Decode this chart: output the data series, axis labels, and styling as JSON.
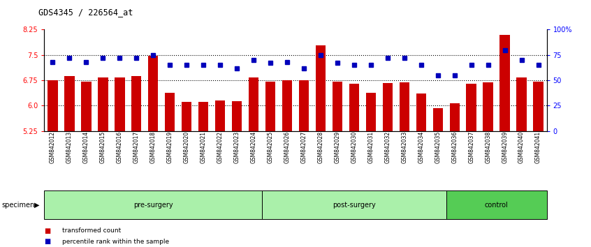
{
  "title": "GDS4345 / 226564_at",
  "samples": [
    "GSM842012",
    "GSM842013",
    "GSM842014",
    "GSM842015",
    "GSM842016",
    "GSM842017",
    "GSM842018",
    "GSM842019",
    "GSM842020",
    "GSM842021",
    "GSM842022",
    "GSM842023",
    "GSM842024",
    "GSM842025",
    "GSM842026",
    "GSM842027",
    "GSM842028",
    "GSM842029",
    "GSM842030",
    "GSM842031",
    "GSM842032",
    "GSM842033",
    "GSM842034",
    "GSM842035",
    "GSM842036",
    "GSM842037",
    "GSM842038",
    "GSM842039",
    "GSM842040",
    "GSM842041"
  ],
  "red_values": [
    6.75,
    6.87,
    6.72,
    6.83,
    6.83,
    6.88,
    7.48,
    6.37,
    6.12,
    6.12,
    6.15,
    6.13,
    6.83,
    6.72,
    6.75,
    6.75,
    7.78,
    6.7,
    6.65,
    6.37,
    6.67,
    6.68,
    6.35,
    5.93,
    6.07,
    6.65,
    6.68,
    8.1,
    6.83,
    6.7
  ],
  "blue_values": [
    68,
    72,
    68,
    72,
    72,
    72,
    75,
    65,
    65,
    65,
    65,
    62,
    70,
    67,
    68,
    62,
    75,
    67,
    65,
    65,
    72,
    72,
    65,
    55,
    55,
    65,
    65,
    80,
    70,
    65
  ],
  "groups": [
    {
      "label": "pre-surgery",
      "start": 0,
      "end": 13,
      "light": true
    },
    {
      "label": "post-surgery",
      "start": 13,
      "end": 24,
      "light": true
    },
    {
      "label": "control",
      "start": 24,
      "end": 30,
      "light": false
    }
  ],
  "ylim_left": [
    5.25,
    8.25
  ],
  "ylim_right": [
    0,
    100
  ],
  "yticks_left": [
    5.25,
    6.0,
    6.75,
    7.5,
    8.25
  ],
  "yticks_right": [
    0,
    25,
    50,
    75,
    100
  ],
  "ytick_labels_right": [
    "0",
    "25",
    "50",
    "75",
    "100%"
  ],
  "hlines": [
    6.0,
    6.75,
    7.5
  ],
  "bar_color": "#CC0000",
  "dot_color": "#0000BB",
  "bar_width": 0.6,
  "group_color_light": "#aaf0aa",
  "group_color_dark": "#55cc55",
  "specimen_label": "specimen"
}
